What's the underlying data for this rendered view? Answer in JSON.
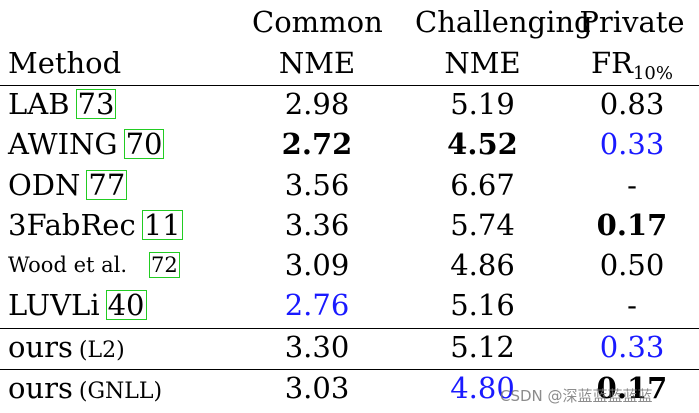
{
  "group_header": {
    "common": "Common",
    "challenging": "Challenging",
    "private": "Private"
  },
  "column_header": {
    "method": "Method",
    "col1": "NME",
    "col2": "NME",
    "col3_main": "FR",
    "col3_sub": "10%"
  },
  "rows": [
    {
      "method": "LAB",
      "cite": "73",
      "common": "2.98",
      "challenging": "5.19",
      "private": "0.83"
    },
    {
      "method": "AWING",
      "cite": "70",
      "common": "2.72",
      "challenging": "4.52",
      "private": "0.33"
    },
    {
      "method": "ODN",
      "cite": "77",
      "common": "3.56",
      "challenging": "6.67",
      "private": "-"
    },
    {
      "method": "3FabRec",
      "cite": "11",
      "common": "3.36",
      "challenging": "5.74",
      "private": "0.17"
    },
    {
      "method": "Wood et al.",
      "cite": "72",
      "common": "3.09",
      "challenging": "4.86",
      "private": "0.50"
    },
    {
      "method": "LUVLi",
      "cite": "40",
      "common": "2.76",
      "challenging": "5.16",
      "private": "-"
    },
    {
      "method": "ours",
      "variant": "(L2)",
      "common": "3.30",
      "challenging": "5.12",
      "private": "0.33"
    },
    {
      "method": "ours",
      "variant": "(GNLL)",
      "common": "3.03",
      "challenging": "4.80",
      "private": "0.17"
    }
  ],
  "colors": {
    "best": "#000000",
    "second": "#1a1aff",
    "cite_box": "#22cc22"
  },
  "watermark": "CSDN @深蓝蓝蓝蓝蓝"
}
